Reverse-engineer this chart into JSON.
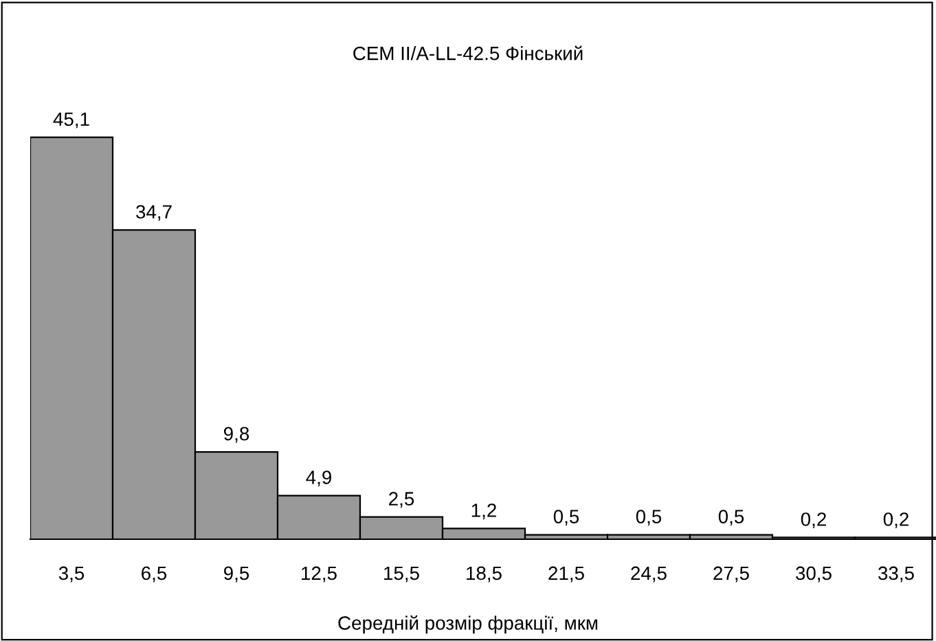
{
  "chart_data": {
    "type": "bar",
    "title": "CEM II/A-LL-42.5 Фінський",
    "xlabel": "Середній розмір фракції, мкм",
    "categories": [
      "3,5",
      "6,5",
      "9,5",
      "12,5",
      "15,5",
      "18,5",
      "21,5",
      "24,5",
      "27,5",
      "30,5",
      "33,5"
    ],
    "values": [
      45.1,
      34.7,
      9.8,
      4.9,
      2.5,
      1.2,
      0.5,
      0.5,
      0.5,
      0.2,
      0.2
    ],
    "value_labels": [
      "45,1",
      "34,7",
      "9,8",
      "4,9",
      "2,5",
      "1,2",
      "0,5",
      "0,5",
      "0,5",
      "0,2",
      "0,2"
    ],
    "color": "#999999",
    "grid": false,
    "legend": false
  }
}
